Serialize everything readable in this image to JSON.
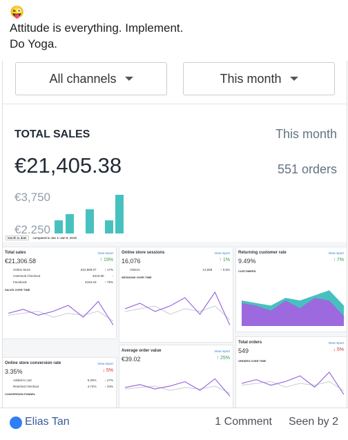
{
  "post": {
    "emoji": "😜",
    "lines": [
      "Attitude is everything. Implement.",
      "Do Yoga."
    ]
  },
  "image1": {
    "filters": [
      "All channels",
      "This month"
    ],
    "title": "TOTAL SALES",
    "period": "This month",
    "amount": "€21,405.38",
    "orders": "551 orders",
    "axis_labels": [
      "€3,750",
      "€2,250"
    ]
  },
  "image2": {
    "range": "Month to date",
    "compare": "compared to Jan 1–Jan 9, 2019",
    "view_report": "View report",
    "cards": [
      {
        "title": "Total sales",
        "value": "€21,306.58",
        "change": "↑ 19%",
        "rows": [
          [
            "Online Store",
            "€22,869.07",
            "↑ 17%"
          ],
          [
            "CartHook Checkout",
            "€243.80",
            "-"
          ],
          [
            "Facebook",
            "€194.03",
            "↑ 75%"
          ]
        ],
        "subtitle": "SALES OVER TIME"
      },
      {
        "title": "Online store sessions",
        "value": "16,076",
        "change": "↑ 1%",
        "rows": [
          [
            "Visitors",
            "14,659",
            "↑ 0.6%"
          ]
        ],
        "subtitle": "SESSIONS OVER TIME"
      },
      {
        "title": "Returning customer rate",
        "value": "9.49%",
        "change": "↑ 7%",
        "rows": [],
        "subtitle": "CUSTOMERS"
      },
      {
        "title": "Total orders",
        "value": "549",
        "change": "↓ 5%",
        "rows": [],
        "subtitle": "ORDERS OVER TIME"
      },
      {
        "title": "Average order value",
        "value": "€39.02",
        "change": "↑ 25%",
        "rows": [],
        "subtitle": ""
      },
      {
        "title": "Online store conversion rate",
        "value": "3.35%",
        "change": "↓ 5%",
        "rows": [
          [
            "Added to cart",
            "5.20%",
            "↓ 27%"
          ],
          [
            "Reached checkout",
            "4.74%",
            "↓ 34%"
          ]
        ],
        "subtitle": "CONVERSION FUNNEL"
      }
    ]
  },
  "footer": {
    "author": "Elias Tan",
    "comments": "1 Comment",
    "seen": "Seen by 2"
  }
}
